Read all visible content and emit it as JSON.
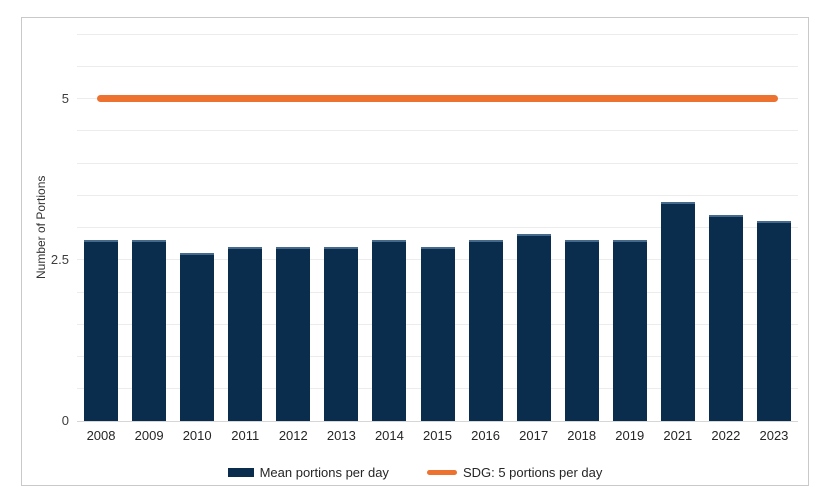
{
  "colors": {
    "bar": "#0a2d4d",
    "bar_top_edge": "#44698a",
    "sdg_line": "#ed712f",
    "gridline": "#ececec",
    "axis_line": "#d6d6d6",
    "figure_border": "#c9c9c9",
    "tick_text": "#262626"
  },
  "chart_data": {
    "type": "bar",
    "ylabel": "Number of Portions",
    "xlabel": "",
    "categories": [
      "2008",
      "2009",
      "2010",
      "2011",
      "2012",
      "2013",
      "2014",
      "2015",
      "2016",
      "2017",
      "2018",
      "2019",
      "2021",
      "2022",
      "2023"
    ],
    "series": [
      {
        "name": "Mean portions per day",
        "type": "bar",
        "color": "#0a2d4d",
        "values": [
          2.8,
          2.8,
          2.6,
          2.7,
          2.7,
          2.7,
          2.8,
          2.7,
          2.8,
          2.9,
          2.8,
          2.8,
          3.4,
          3.2,
          3.1
        ]
      },
      {
        "name": "SDG: 5 portions per day",
        "type": "line",
        "color": "#ed712f",
        "value": 5
      }
    ],
    "ylim": [
      0,
      6
    ],
    "yticks": [
      0,
      2.5,
      5
    ],
    "gridline_step": 0.5,
    "grid": "horizontal",
    "legend_position": "bottom"
  }
}
